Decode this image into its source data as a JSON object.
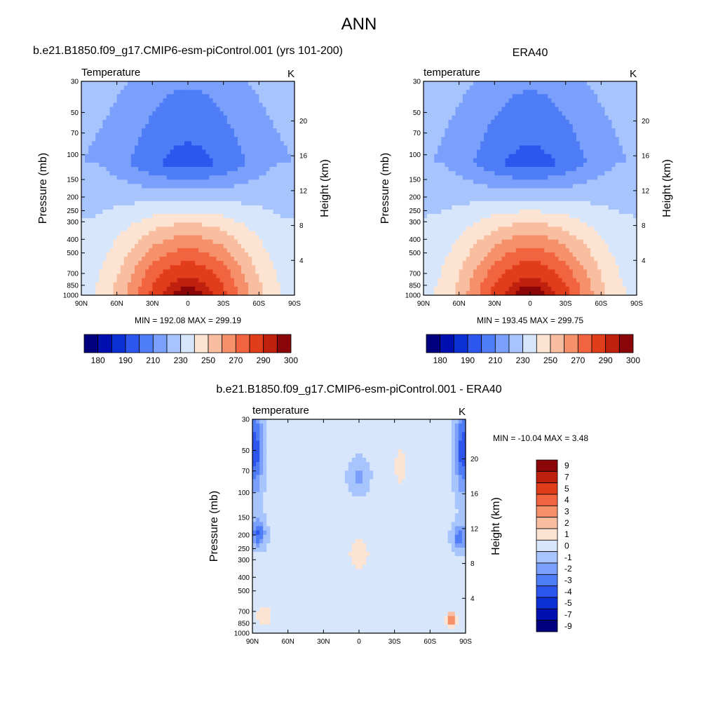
{
  "figure": {
    "title": "ANN"
  },
  "colors": {
    "temperature_levels": [
      "#00007f",
      "#0010b0",
      "#0c30d6",
      "#2c56ee",
      "#4f7cf7",
      "#7aa0fb",
      "#a8c4fc",
      "#d7e6fb",
      "#fde4d2",
      "#f9bea0",
      "#f5906b",
      "#f2643f",
      "#e13d1b",
      "#c0200e",
      "#8a0608"
    ],
    "difference_levels": [
      "#00007f",
      "#0010b0",
      "#0c30d6",
      "#2c56ee",
      "#4f7cf7",
      "#7aa0fb",
      "#a8c4fc",
      "#d7e6fb",
      "#fde4d2",
      "#f9bea0",
      "#f5906b",
      "#f2643f",
      "#e13d1b",
      "#c0200e",
      "#8a0608"
    ]
  },
  "chart_data": [
    {
      "type": "heatmap",
      "panel_title": "b.e21.B1850.f09_g17.CMIP6-esm-piControl.001 (yrs 101-200)",
      "left_label": "Temperature",
      "units": "K",
      "ylabel": "Pressure (mb)",
      "ylabel_right": "Height (km)",
      "x_ticks": [
        "90N",
        "60N",
        "30N",
        "0",
        "30S",
        "60S",
        "90S"
      ],
      "y_ticks": [
        "30",
        "50",
        "70",
        "100",
        "150",
        "200",
        "250",
        "300",
        "400",
        "500",
        "700",
        "850",
        "1000"
      ],
      "y_ticks_right": [
        "20",
        "16",
        "12",
        "8",
        "4"
      ],
      "ylim": [
        1000,
        30
      ],
      "stats": "MIN = 192.08  MAX = 299.19",
      "min": 192.08,
      "max": 299.19,
      "colorbar_labels": [
        "180",
        "190",
        "210",
        "230",
        "250",
        "270",
        "290",
        "300"
      ],
      "colorbar_levels": [
        175,
        180,
        185,
        190,
        200,
        210,
        220,
        230,
        240,
        250,
        260,
        270,
        280,
        290,
        295,
        300
      ],
      "colorbar_orientation": "horizontal"
    },
    {
      "type": "heatmap",
      "panel_title": "ERA40",
      "left_label": "temperature",
      "units": "K",
      "ylabel": "Pressure (mb)",
      "ylabel_right": "Height (km)",
      "x_ticks": [
        "90N",
        "60N",
        "30N",
        "0",
        "30S",
        "60S",
        "90S"
      ],
      "y_ticks": [
        "30",
        "50",
        "70",
        "100",
        "150",
        "200",
        "250",
        "300",
        "400",
        "500",
        "700",
        "850",
        "1000"
      ],
      "y_ticks_right": [
        "20",
        "16",
        "12",
        "8",
        "4"
      ],
      "ylim": [
        1000,
        30
      ],
      "stats": "MIN = 193.45  MAX = 299.75",
      "min": 193.45,
      "max": 299.75,
      "colorbar_labels": [
        "180",
        "190",
        "210",
        "230",
        "250",
        "270",
        "290",
        "300"
      ],
      "colorbar_levels": [
        175,
        180,
        185,
        190,
        200,
        210,
        220,
        230,
        240,
        250,
        260,
        270,
        280,
        290,
        295,
        300
      ],
      "colorbar_orientation": "horizontal"
    },
    {
      "type": "heatmap",
      "panel_title": "b.e21.B1850.f09_g17.CMIP6-esm-piControl.001 - ERA40",
      "left_label": "temperature",
      "units": "K",
      "ylabel": "Pressure (mb)",
      "ylabel_right": "Height (km)",
      "x_ticks": [
        "90N",
        "60N",
        "30N",
        "0",
        "30S",
        "60S",
        "90S"
      ],
      "y_ticks": [
        "30",
        "50",
        "70",
        "100",
        "150",
        "200",
        "250",
        "300",
        "400",
        "500",
        "700",
        "850",
        "1000"
      ],
      "y_ticks_right": [
        "20",
        "16",
        "12",
        "8",
        "4"
      ],
      "ylim": [
        1000,
        30
      ],
      "stats": "MIN = -10.04  MAX =   3.48",
      "min": -10.04,
      "max": 3.48,
      "colorbar_labels": [
        "9",
        "7",
        "5",
        "4",
        "3",
        "2",
        "1",
        "0",
        "-1",
        "-2",
        "-3",
        "-4",
        "-5",
        "-7",
        "-9"
      ],
      "colorbar_orientation": "vertical"
    }
  ]
}
